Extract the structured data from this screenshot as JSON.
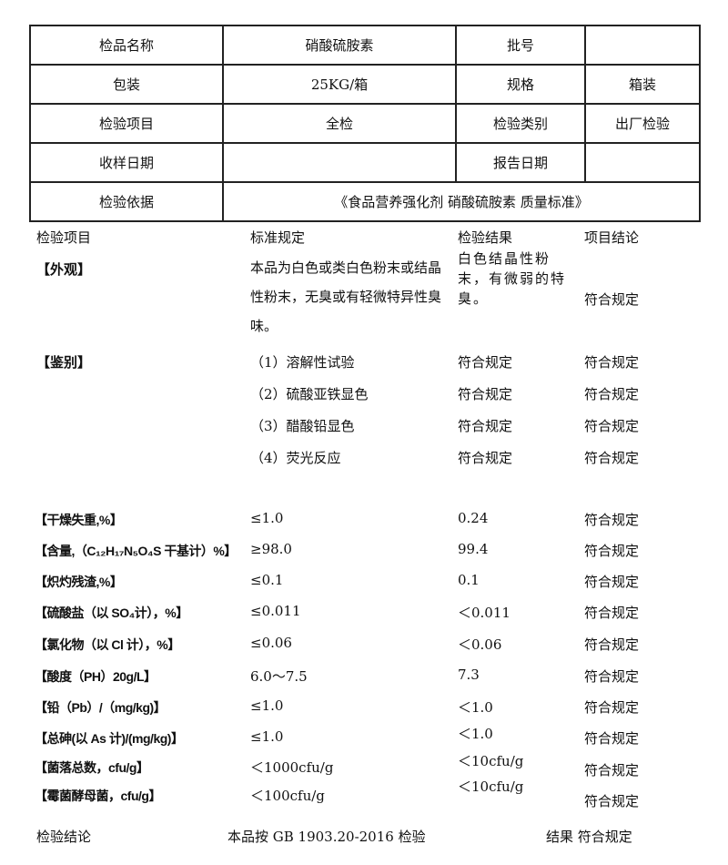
{
  "header": {
    "product_label": "检品名称",
    "product": "硝酸硫胺素",
    "batch_label": "批号",
    "batch": "",
    "package_label": "包装",
    "package": "25KG/箱",
    "spec_label": "规格",
    "spec": "箱装",
    "item_label": "检验项目",
    "item": "全检",
    "type_label": "检验类别",
    "type": "出厂检验",
    "sample_date_label": "收样日期",
    "sample_date": "",
    "report_date_label": "报告日期",
    "report_date": "",
    "basis_label": "检验依据",
    "basis": "《食品营养强化剂 硝酸硫胺素 质量标准》"
  },
  "columns": {
    "item": "检验项目",
    "standard": "标准规定",
    "result": "检验结果",
    "conclusion": "项目结论"
  },
  "appearance": {
    "name": "【外观】",
    "standard": "本品为白色或类白色粉末或结晶性粉末，无臭或有轻微特异性臭味。",
    "result": "白色结晶性粉末，有微弱的特臭。",
    "conclusion": "符合规定"
  },
  "identification": {
    "name": "【鉴别】",
    "tests": [
      {
        "standard": "（1）溶解性试验",
        "result": "符合规定",
        "conclusion": "符合规定"
      },
      {
        "standard": "（2）硫酸亚铁显色",
        "result": "符合规定",
        "conclusion": "符合规定"
      },
      {
        "standard": "（3）醋酸铅显色",
        "result": "符合规定",
        "conclusion": "符合规定"
      },
      {
        "standard": "（4）荧光反应",
        "result": "符合规定",
        "conclusion": "符合规定"
      }
    ]
  },
  "rows": [
    {
      "name": "【干燥失重,%】",
      "standard": "≤1.0",
      "result": "0.24",
      "conclusion": "符合规定"
    },
    {
      "name": "【含量,（C₁₂H₁₇N₅O₄S 干基计）%】",
      "standard": "≥98.0",
      "result": "99.4",
      "conclusion": "符合规定"
    },
    {
      "name": "【炽灼残渣,%】",
      "standard": "≤0.1",
      "result": "0.1",
      "conclusion": "符合规定"
    },
    {
      "name": "【硫酸盐（以 SO₄计），%】",
      "standard": "≤0.011",
      "result": "＜0.011",
      "conclusion": "符合规定"
    },
    {
      "name": "【氯化物（以 Cl 计），%】",
      "standard": "≤0.06",
      "result": "＜0.06",
      "conclusion": "符合规定"
    },
    {
      "name": "【酸度（PH）20g/L】",
      "standard": "6.0～7.5",
      "result": "7.3",
      "conclusion": "符合规定"
    },
    {
      "name": "【铅（Pb）/（mg/kg)】",
      "standard": "≤1.0",
      "result": "＜1.0",
      "conclusion": "符合规定"
    },
    {
      "name": "【总砷(以 As 计)/(mg/kg)】",
      "standard": "≤1.0",
      "result": "＜1.0",
      "conclusion": "符合规定"
    },
    {
      "name": "【菌落总数，cfu/g】",
      "standard": "＜1000cfu/g",
      "result": "＜10cfu/g",
      "conclusion": "符合规定"
    },
    {
      "name": "【霉菌酵母菌，cfu/g】",
      "standard": "＜100cfu/g",
      "result": "＜10cfu/g",
      "conclusion": "符合规定"
    }
  ],
  "footer": {
    "label": "检验结论",
    "text": "本品按 GB 1903.20-2016 检验",
    "result": "结果 符合规定"
  }
}
